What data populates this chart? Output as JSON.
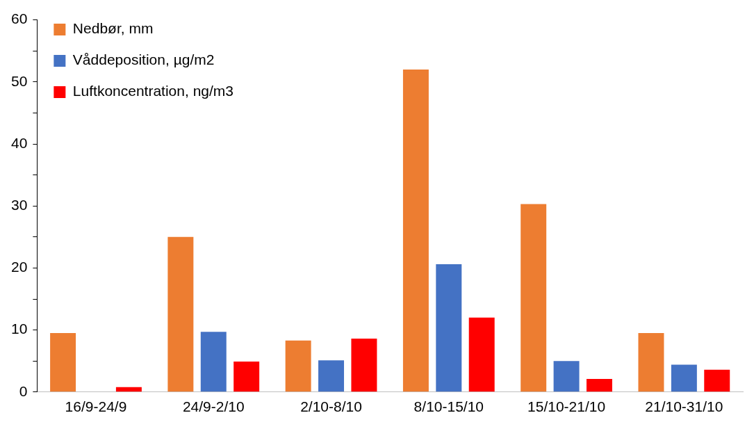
{
  "chart_data": {
    "type": "bar",
    "categories": [
      "16/9-24/9",
      "24/9-2/10",
      "2/10-8/10",
      "8/10-15/10",
      "15/10-21/10",
      "21/10-31/10"
    ],
    "series": [
      {
        "name": "Nedbør, mm",
        "color": "#ed7d31",
        "values": [
          9.5,
          25,
          8.3,
          52,
          30.3,
          9.5
        ]
      },
      {
        "name": "Våddeposition, µg/m2",
        "color": "#4472c4",
        "values": [
          null,
          9.7,
          5.1,
          20.6,
          5,
          4.4
        ]
      },
      {
        "name": "Luftkoncentration, ng/m3",
        "color": "#ff0000",
        "values": [
          0.8,
          4.9,
          8.6,
          12,
          2.1,
          3.6
        ]
      }
    ],
    "ylim": [
      0,
      60
    ],
    "yticks": [
      0,
      {
        "value": 5,
        "label": null
      },
      10,
      {
        "value": 15,
        "label": null
      },
      20,
      {
        "value": 25,
        "label": null
      },
      30,
      {
        "value": 35,
        "label": null
      },
      40,
      {
        "value": 45,
        "label": null
      },
      50,
      {
        "value": 55,
        "label": null
      },
      60
    ],
    "grid": false,
    "legend": "top left"
  }
}
